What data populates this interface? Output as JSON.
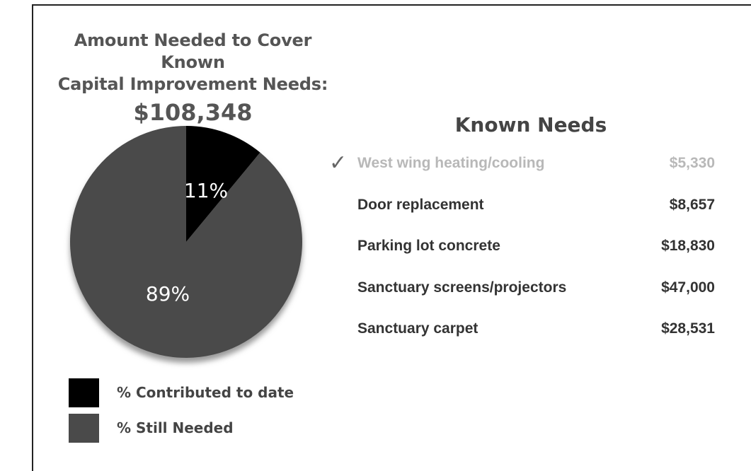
{
  "header": {
    "title_line1": "Amount Needed to Cover Known",
    "title_line2": "Capital Improvement Needs:",
    "total": "$108,348"
  },
  "chart_data": {
    "type": "pie",
    "slices": [
      {
        "name": "% Contributed to date",
        "value": 11,
        "label": "11%",
        "color": "#000000"
      },
      {
        "name": "% Still Needed",
        "value": 89,
        "label": "89%",
        "color": "#4a4a4a"
      }
    ],
    "legend": [
      {
        "label": "% Contributed to date",
        "color": "#000000"
      },
      {
        "label": "% Still Needed",
        "color": "#4a4a4a"
      }
    ],
    "legend_placement": "bottom-left"
  },
  "known_needs": {
    "heading": "Known Needs",
    "check_icon": "✓",
    "items": [
      {
        "name": "West wing heating/cooling",
        "amount": "$5,330",
        "completed": true
      },
      {
        "name": "Door replacement",
        "amount": "$8,657",
        "completed": false
      },
      {
        "name": "Parking lot concrete",
        "amount": "$18,830",
        "completed": false
      },
      {
        "name": "Sanctuary screens/projectors",
        "amount": "$47,000",
        "completed": false
      },
      {
        "name": "Sanctuary carpet",
        "amount": "$28,531",
        "completed": false
      }
    ]
  }
}
